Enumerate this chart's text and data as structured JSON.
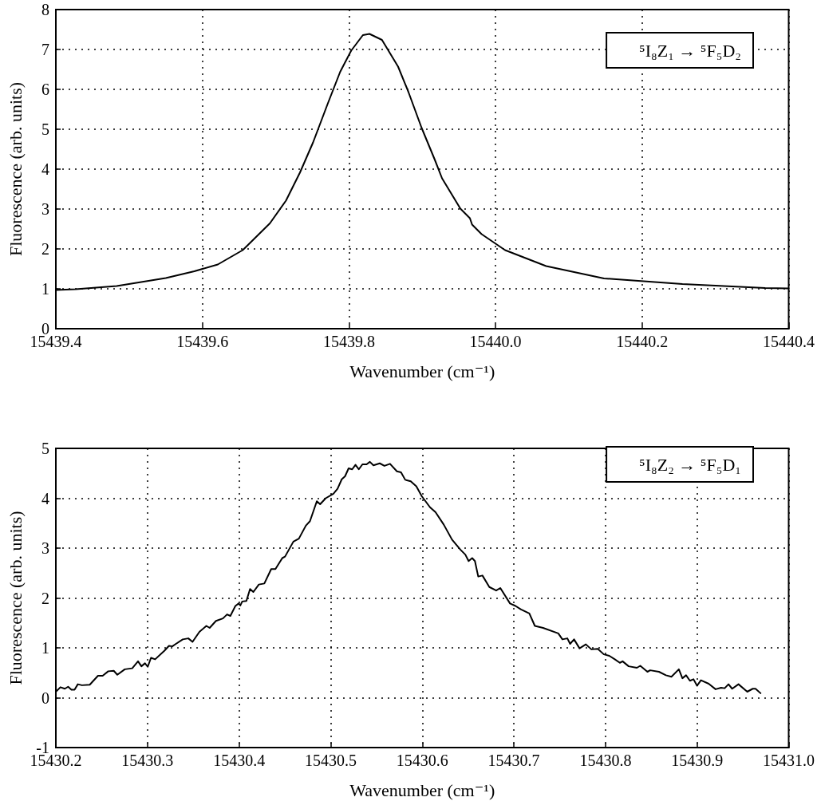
{
  "chart_data": [
    {
      "type": "line",
      "xlabel": "Wavenumber (cm⁻¹)",
      "ylabel": "Fluorescence (arb. units)",
      "annotations": [
        "⁵I₈Z₁ → ⁵F₅D₂"
      ],
      "xlim": [
        15439.4,
        15440.4
      ],
      "xticks": [
        15439.4,
        15439.6,
        15439.8,
        {
          "value": 15440,
          "label": "15440.0"
        },
        15440.2,
        15440.4
      ],
      "ylim": [
        0,
        8
      ],
      "yticks": [
        0,
        1,
        2,
        3,
        4,
        5,
        6,
        7,
        8
      ],
      "grid": true,
      "marker": "none",
      "line_style": "solid",
      "series": [
        {
          "color": "#000000",
          "x": [
            15439.4,
            15439.427,
            15439.483,
            15439.55,
            15439.589,
            15439.621,
            15439.655,
            15439.692,
            15439.714,
            15439.733,
            15439.751,
            15439.771,
            15439.788,
            15439.803,
            15439.819,
            15439.828,
            15439.845,
            15439.867,
            15439.881,
            15439.899,
            15439.917,
            15439.927,
            15439.952,
            15439.965,
            15439.968,
            15439.981,
            15440.013,
            15440.069,
            15440.148,
            15440.255,
            15440.368,
            15440.4
          ],
          "values": [
            0.97,
            0.99,
            1.07,
            1.27,
            1.44,
            1.61,
            1.97,
            2.64,
            3.21,
            3.91,
            4.67,
            5.64,
            6.44,
            6.97,
            7.36,
            7.39,
            7.24,
            6.57,
            5.94,
            5.04,
            4.24,
            3.77,
            3.01,
            2.77,
            2.61,
            2.37,
            1.97,
            1.57,
            1.26,
            1.12,
            1.02,
            1.01
          ]
        }
      ]
    },
    {
      "type": "line",
      "xlabel": "Wavenumber (cm⁻¹)",
      "ylabel": "Fluorescence (arb. units)",
      "annotations": [
        "⁵I₈Z₂ → ⁵F₅D₁"
      ],
      "xlim": [
        15430.2,
        15431
      ],
      "xticks": [
        15430.2,
        15430.3,
        15430.4,
        15430.5,
        15430.6,
        15430.7,
        15430.8,
        15430.9,
        {
          "value": 15431,
          "label": "15431.0"
        }
      ],
      "ylim": [
        -1,
        5
      ],
      "yticks": [
        -1,
        0,
        1,
        2,
        3,
        4,
        5
      ],
      "grid": true,
      "marker": "none",
      "line_style": "solid",
      "series": [
        {
          "color": "#000000",
          "x": [
            15430.2,
            15430.205,
            15430.2098,
            15430.2134,
            15430.217,
            15430.2204,
            15430.224,
            15430.2285,
            15430.237,
            15430.246,
            15430.2511,
            15430.2572,
            15430.2632,
            15430.2671,
            15430.2753,
            15430.2834,
            15430.2897,
            15430.2934,
            15430.2973,
            15430.3003,
            15430.3039,
            15430.3084,
            15430.3184,
            15430.3235,
            15430.3271,
            15430.3311,
            15430.3386,
            15430.3446,
            15430.3492,
            15430.3567,
            15430.3643,
            15430.3679,
            15430.3748,
            15430.3824,
            15430.3869,
            15430.3905,
            15430.396,
            15430.3996,
            15430.4014,
            15430.4035,
            15430.408,
            15430.412,
            15430.4156,
            15430.4216,
            15430.4276,
            15430.4351,
            15430.4397,
            15430.4472,
            15430.4502,
            15430.4593,
            15430.4653,
            15430.4729,
            15430.4774,
            15430.4849,
            15430.4885,
            15430.4946,
            15430.503,
            15430.5075,
            15430.5121,
            15430.5157,
            15430.5196,
            15430.5235,
            15430.5271,
            15430.5307,
            15430.5347,
            15430.5392,
            15430.5428,
            15430.5467,
            15430.5536,
            15430.5587,
            15430.5648,
            15430.5723,
            15430.5768,
            15430.5814,
            15430.5874,
            15430.5935,
            15430.5995,
            15430.6084,
            15430.6145,
            15430.6235,
            15430.6325,
            15430.6416,
            15430.647,
            15430.6506,
            15430.6545,
            15430.6575,
            15430.6611,
            15430.6657,
            15430.6732,
            15430.6807,
            15430.6852,
            15430.6958,
            15430.7018,
            15430.7078,
            15430.7169,
            15430.7229,
            15430.7319,
            15430.7485,
            15430.753,
            15430.7584,
            15430.7614,
            15430.7657,
            15430.7717,
            15430.7786,
            15430.7846,
            15430.7916,
            15430.7982,
            15430.8042,
            15430.8102,
            15430.8157,
            15430.8187,
            15430.8253,
            15430.8343,
            15430.838,
            15430.8458,
            15430.8488,
            15430.8584,
            15430.866,
            15430.872,
            15430.8801,
            15430.884,
            15430.888,
            15430.8922,
            15430.8961,
            15430.9,
            15430.9042,
            15430.9127,
            15430.9202,
            15430.9262,
            15430.9301,
            15430.9343,
            15430.9383,
            15430.9452,
            15430.9548,
            15430.9608,
            15430.9638,
            15430.9693
          ],
          "values": [
            0.12,
            0.21,
            0.18,
            0.22,
            0.16,
            0.16,
            0.27,
            0.25,
            0.26,
            0.44,
            0.44,
            0.53,
            0.54,
            0.46,
            0.57,
            0.59,
            0.73,
            0.63,
            0.69,
            0.62,
            0.8,
            0.77,
            0.94,
            1.04,
            1.03,
            1.08,
            1.17,
            1.19,
            1.12,
            1.32,
            1.44,
            1.4,
            1.54,
            1.59,
            1.67,
            1.64,
            1.84,
            1.89,
            1.85,
            1.93,
            1.94,
            2.18,
            2.12,
            2.27,
            2.29,
            2.58,
            2.58,
            2.8,
            2.83,
            3.13,
            3.19,
            3.45,
            3.54,
            3.94,
            3.88,
            4,
            4.09,
            4.19,
            4.38,
            4.44,
            4.6,
            4.58,
            4.67,
            4.58,
            4.68,
            4.68,
            4.73,
            4.66,
            4.7,
            4.65,
            4.69,
            4.54,
            4.52,
            4.37,
            4.34,
            4.24,
            4.04,
            3.82,
            3.72,
            3.47,
            3.17,
            2.97,
            2.87,
            2.74,
            2.8,
            2.74,
            2.43,
            2.45,
            2.22,
            2.15,
            2.2,
            1.89,
            1.84,
            1.77,
            1.69,
            1.44,
            1.4,
            1.29,
            1.17,
            1.19,
            1.08,
            1.17,
            0.99,
            1.07,
            0.97,
            0.98,
            0.87,
            0.84,
            0.77,
            0.7,
            0.73,
            0.63,
            0.6,
            0.64,
            0.52,
            0.55,
            0.52,
            0.45,
            0.42,
            0.57,
            0.39,
            0.45,
            0.34,
            0.37,
            0.24,
            0.35,
            0.28,
            0.17,
            0.2,
            0.19,
            0.27,
            0.18,
            0.27,
            0.12,
            0.18,
            0.18,
            0.09
          ]
        }
      ]
    }
  ]
}
